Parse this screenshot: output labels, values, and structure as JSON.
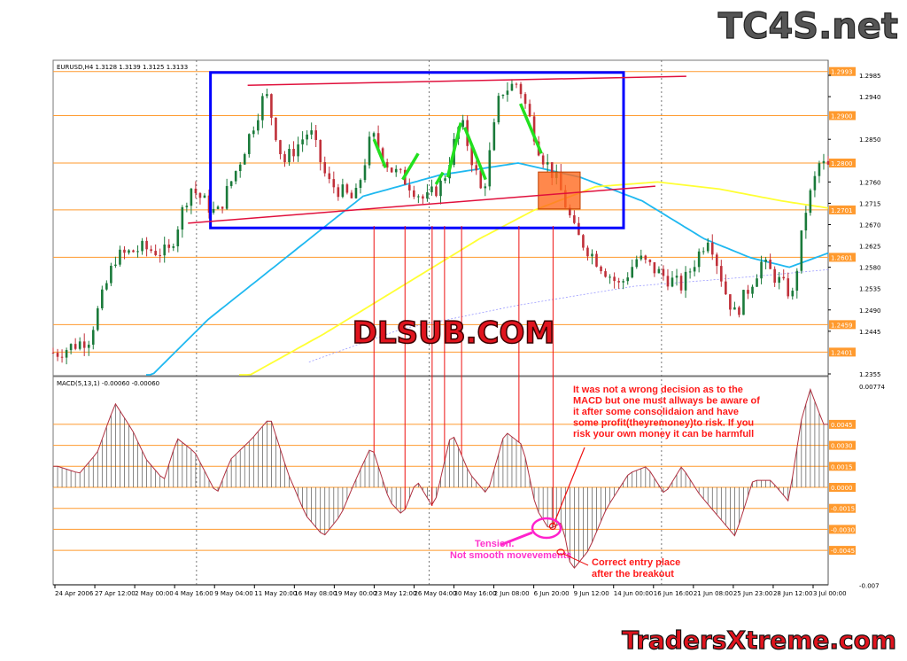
{
  "logos": {
    "top": "TC4S.net",
    "bottom": "TradersXtreme.com",
    "watermark": "DLSUB.COM"
  },
  "chart_data": {
    "type": "candlestick",
    "symbol_header": "EURUSD,H4  1.3128 1.3139 1.3125 1.3133",
    "price_axis": {
      "range": [
        1.2355,
        1.3005
      ],
      "ticks": [
        "1.2985",
        "1.2940",
        "1.2850",
        "1.2760",
        "1.2715",
        "1.2670",
        "1.2625",
        "1.2580",
        "1.2535",
        "1.2490",
        "1.2445",
        "1.2355"
      ]
    },
    "levels": [
      "1.2993",
      "1.2900",
      "1.2800",
      "1.2701",
      "1.2601",
      "1.2459",
      "1.2401"
    ],
    "x_axis": {
      "range": [
        0,
        100
      ],
      "tick_labels": [
        "24 Apr 2006",
        "27 Apr 12:00",
        "2 May 00:00",
        "4 May 16:00",
        "9 May 04:00",
        "11 May 20:00",
        "16 May 08:00",
        "19 May 00:00",
        "23 May 12:00",
        "26 May 04:00",
        "30 May 16:00",
        "2 Jun 08:00",
        "6 Jun 20:00",
        "9 Jun 12:00",
        "14 Jun 00:00",
        "16 Jun 16:00",
        "21 Jun 08:00",
        "25 Jun 23:00",
        "28 Jun 12:00",
        "3 Jul 00:00"
      ]
    },
    "price_path": [
      [
        0.6,
        1.24
      ],
      [
        4.6,
        1.243
      ],
      [
        8,
        1.26
      ],
      [
        11.4,
        1.262
      ],
      [
        14.9,
        1.261
      ],
      [
        17.7,
        1.275
      ],
      [
        21.1,
        1.269
      ],
      [
        24,
        1.28
      ],
      [
        27.4,
        1.295
      ],
      [
        29.7,
        1.28
      ],
      [
        33.1,
        1.287
      ],
      [
        35.4,
        1.276
      ],
      [
        38.9,
        1.272
      ],
      [
        41.1,
        1.286
      ],
      [
        43.4,
        1.279
      ],
      [
        45.7,
        1.276
      ],
      [
        48,
        1.272
      ],
      [
        50.3,
        1.276
      ],
      [
        52.6,
        1.289
      ],
      [
        55.4,
        1.273
      ],
      [
        57.7,
        1.295
      ],
      [
        60,
        1.297
      ],
      [
        62.9,
        1.282
      ],
      [
        65.1,
        1.276
      ],
      [
        67.4,
        1.265
      ],
      [
        70.9,
        1.258
      ],
      [
        73.1,
        1.254
      ],
      [
        75.4,
        1.26
      ],
      [
        78.9,
        1.256
      ],
      [
        81.1,
        1.254
      ],
      [
        84.6,
        1.265
      ],
      [
        86.9,
        1.252
      ],
      [
        88,
        1.248
      ],
      [
        91.4,
        1.259
      ],
      [
        93.7,
        1.255
      ],
      [
        95.4,
        1.252
      ],
      [
        97.1,
        1.27
      ],
      [
        98.9,
        1.28
      ],
      [
        100,
        1.279
      ]
    ],
    "moving_averages": [
      {
        "color": "#1fb8f0",
        "points": [
          [
            12,
            1.234
          ],
          [
            20,
            1.247
          ],
          [
            30,
            1.26
          ],
          [
            40,
            1.273
          ],
          [
            50,
            1.2775
          ],
          [
            60,
            1.28
          ],
          [
            68,
            1.277
          ],
          [
            76,
            1.272
          ],
          [
            84,
            1.264
          ],
          [
            90,
            1.26
          ],
          [
            95,
            1.258
          ],
          [
            100,
            1.261
          ]
        ]
      },
      {
        "color": "#ffff33",
        "points": [
          [
            24,
            1.234
          ],
          [
            35,
            1.244
          ],
          [
            45,
            1.254
          ],
          [
            55,
            1.264
          ],
          [
            62,
            1.27
          ],
          [
            70,
            1.275
          ],
          [
            78,
            1.276
          ],
          [
            86,
            1.2745
          ],
          [
            94,
            1.272
          ],
          [
            100,
            1.2705
          ]
        ]
      },
      {
        "color": "#9999ff",
        "dashed": true,
        "points": [
          [
            33,
            1.238
          ],
          [
            45,
            1.245
          ],
          [
            60,
            1.25
          ],
          [
            75,
            1.254
          ],
          [
            90,
            1.256
          ],
          [
            100,
            1.2575
          ]
        ]
      }
    ],
    "drawings": {
      "rectangle": {
        "color": "#0000ff",
        "x": [
          20.3,
          73.6
        ],
        "price": [
          1.2991,
          1.2663
        ]
      },
      "resistance_line": {
        "color": "#e0103c",
        "points": [
          [
            25.1,
            1.2964
          ],
          [
            81.7,
            1.2983
          ]
        ]
      },
      "support_line": {
        "color": "#e0103c",
        "points": [
          [
            17.4,
            1.2673
          ],
          [
            77.7,
            1.2751
          ]
        ]
      },
      "breakout_box": {
        "color": "#ff6a1f",
        "x": [
          62.6,
          68
        ],
        "price": [
          1.2781,
          1.2703
        ]
      },
      "swing_lines": {
        "color": "#22e01f",
        "segments": [
          [
            [
              41.4,
              1.285
            ],
            [
              42.9,
              1.279
            ]
          ],
          [
            [
              45.1,
              1.2765
            ],
            [
              47.1,
              1.282
            ]
          ],
          [
            [
              49.4,
              1.2755
            ],
            [
              50.3,
              1.278
            ]
          ],
          [
            [
              50.9,
              1.277
            ],
            [
              52.6,
              1.2885
            ]
          ],
          [
            [
              53.1,
              1.2875
            ],
            [
              55.8,
              1.2765
            ]
          ],
          [
            [
              60.3,
              1.2925
            ],
            [
              63,
              1.282
            ]
          ]
        ]
      },
      "vertical_markers": [
        41.4,
        45.4,
        48.9,
        50.5,
        52.7,
        60.1,
        64.5
      ]
    },
    "macd": {
      "header": "MACD(5,13,1) -0.00060 -0.00060",
      "range": [
        -0.007,
        0.00774
      ],
      "ticks": [
        "0.00774",
        "-0.007"
      ],
      "levels": [
        "0.0045",
        "0.0030",
        "0.0015",
        "0.0000",
        "-0.0015",
        "-0.0030",
        "-0.0045"
      ],
      "histogram": [
        [
          0.6,
          0.0015
        ],
        [
          3.4,
          0.001
        ],
        [
          5.7,
          0.0025
        ],
        [
          8,
          0.006
        ],
        [
          10.3,
          0.004
        ],
        [
          12,
          0.002
        ],
        [
          14.3,
          0.0005
        ],
        [
          16,
          0.0035
        ],
        [
          18.3,
          0.0025
        ],
        [
          21.1,
          -0.0005
        ],
        [
          22.9,
          0.002
        ],
        [
          25.7,
          0.0035
        ],
        [
          28,
          0.005
        ],
        [
          30.3,
          0.001
        ],
        [
          32.6,
          -0.002
        ],
        [
          34.9,
          -0.0035
        ],
        [
          37.1,
          -0.002
        ],
        [
          39.4,
          0.001
        ],
        [
          41.1,
          0.003
        ],
        [
          43.4,
          -0.001
        ],
        [
          45.1,
          -0.002
        ],
        [
          46.9,
          0.0005
        ],
        [
          49.1,
          -0.0015
        ],
        [
          51.4,
          0.004
        ],
        [
          53.7,
          0.001
        ],
        [
          56,
          -0.0005
        ],
        [
          58.3,
          0.004
        ],
        [
          60.6,
          0.003
        ],
        [
          62.3,
          -0.0015
        ],
        [
          64,
          -0.003
        ],
        [
          65.7,
          -0.0025
        ],
        [
          66.9,
          -0.006
        ],
        [
          69.1,
          -0.0045
        ],
        [
          71.4,
          -0.0015
        ],
        [
          74.3,
          0.001
        ],
        [
          76.6,
          0.0015
        ],
        [
          78.9,
          -0.0005
        ],
        [
          81.1,
          0.0015
        ],
        [
          83.4,
          -0.0005
        ],
        [
          85.7,
          -0.002
        ],
        [
          88,
          -0.0035
        ],
        [
          90.3,
          0.0005
        ],
        [
          92.6,
          0.0005
        ],
        [
          94.9,
          -0.001
        ],
        [
          96.6,
          0.005
        ],
        [
          97.7,
          0.007
        ],
        [
          99.4,
          0.0045
        ]
      ]
    },
    "annotations": {
      "decision_note": [
        "It was not a wrong decision as to the",
        "MACD but one must allways be aware of",
        "it after some consolidaion and have",
        "some profit(theyremoney)to risk. If you",
        "risk your own money it can be harmfull"
      ],
      "tension_note": [
        "Tension.",
        "Not smooth movevements"
      ],
      "entry_note": [
        "Correct entry place",
        "after the breakout"
      ]
    },
    "colors": {
      "level": "#ff9a2e",
      "bull_candle": "#1a7a3a",
      "bear_candle": "#c0303a",
      "macd_line": "#b03040"
    }
  }
}
